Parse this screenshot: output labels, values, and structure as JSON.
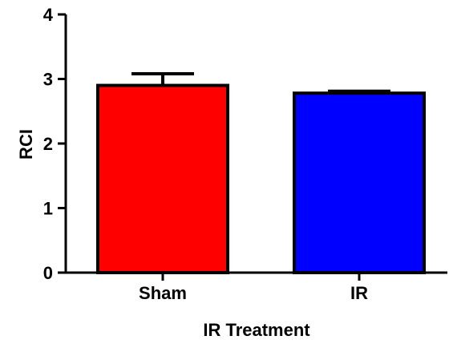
{
  "chart_data": {
    "type": "bar",
    "title": "",
    "xlabel": "IR Treatment",
    "ylabel": "RCI",
    "categories": [
      "Sham",
      "IR"
    ],
    "values": [
      2.9,
      2.78
    ],
    "error_upper": [
      3.08,
      2.81
    ],
    "bar_colors": [
      "#ff0000",
      "#0000ff"
    ],
    "edge_color": "#000000",
    "ylim": [
      0,
      4
    ],
    "yticks": [
      "0",
      "1",
      "2",
      "3",
      "4"
    ],
    "grid": false,
    "legend": "none"
  }
}
